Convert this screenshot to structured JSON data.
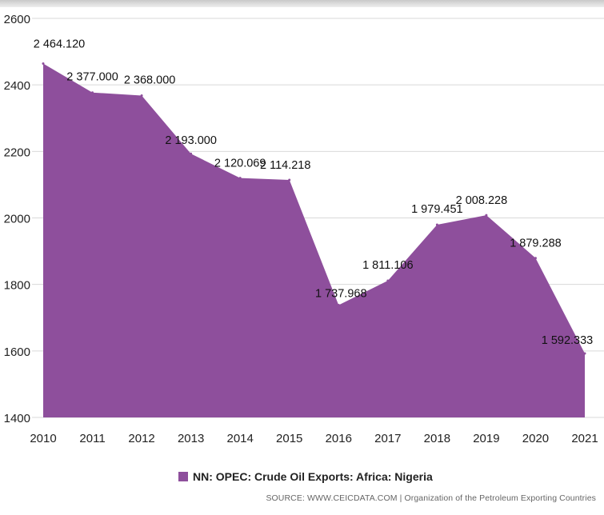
{
  "chart_data": {
    "type": "area",
    "title": "",
    "xlabel": "",
    "ylabel": "",
    "x": [
      "2010",
      "2011",
      "2012",
      "2013",
      "2014",
      "2015",
      "2016",
      "2017",
      "2018",
      "2019",
      "2020",
      "2021"
    ],
    "series": [
      {
        "name": "NN: OPEC: Crude Oil Exports: Africa: Nigeria",
        "values": [
          2464.12,
          2377.0,
          2368.0,
          2193.0,
          2120.069,
          2114.218,
          1737.968,
          1811.106,
          1979.451,
          2008.228,
          1879.288,
          1592.333
        ],
        "labels": [
          "2 464.120",
          "2 377.000",
          "2 368.000",
          "2 193.000",
          "2 120.069",
          "2 114.218",
          "1 737.968",
          "1 811.106",
          "1 979.451",
          "2 008.228",
          "1 879.288",
          "1 592.333"
        ]
      }
    ],
    "yticks": [
      "1400",
      "1600",
      "1800",
      "2000",
      "2200",
      "2400",
      "2600"
    ],
    "ylim": [
      1400,
      2600
    ],
    "grid": true,
    "legend_position": "bottom"
  },
  "colors": {
    "area": "#8e4f9c",
    "grid": "#d9d9d9",
    "text": "#111111"
  },
  "legend": {
    "label": "NN: OPEC: Crude Oil Exports: Africa: Nigeria"
  },
  "source": {
    "text": "SOURCE: WWW.CEICDATA.COM | Organization of the Petroleum Exporting Countries"
  }
}
